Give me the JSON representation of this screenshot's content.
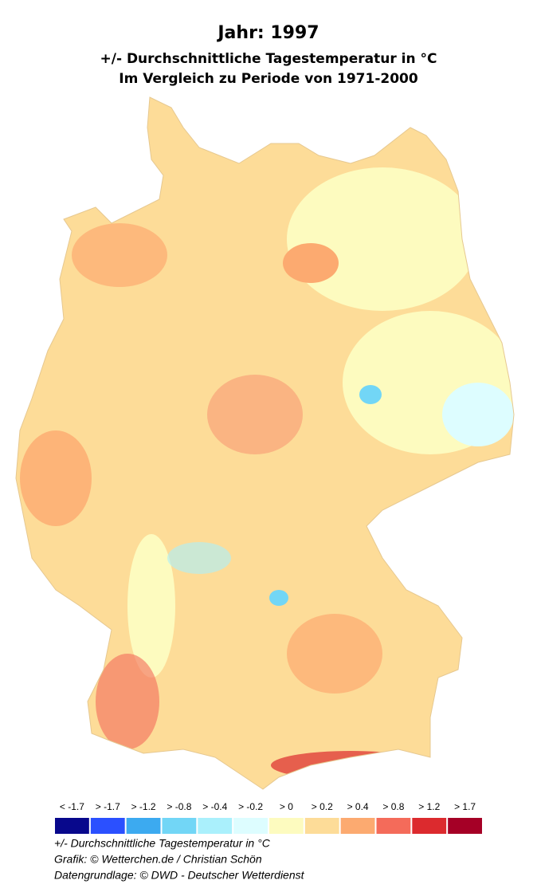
{
  "title": "Jahr: 1997",
  "subtitle": [
    "+/- Durchschnittliche Tagestemperatur in °C",
    "Im Vergleich zu Periode von 1971-2000"
  ],
  "legend": {
    "items": [
      {
        "label": "< -1.7",
        "color": "#08088c"
      },
      {
        "label": "> -1.7",
        "color": "#2b50ff"
      },
      {
        "label": "> -1.2",
        "color": "#3caaf0"
      },
      {
        "label": "> -0.8",
        "color": "#72d6f6"
      },
      {
        "label": "> -0.4",
        "color": "#aaf0fc"
      },
      {
        "label": "> -0.2",
        "color": "#ddfdff"
      },
      {
        "label": "> 0",
        "color": "#fdfbbf"
      },
      {
        "label": "> 0.2",
        "color": "#fddc98"
      },
      {
        "label": "> 0.4",
        "color": "#fcaa70"
      },
      {
        "label": "> 0.8",
        "color": "#f46b5a"
      },
      {
        "label": "> 1.2",
        "color": "#dc2a2e"
      },
      {
        "label": "> 1.7",
        "color": "#a50026"
      }
    ]
  },
  "footer": [
    "+/- Durchschnittliche Tagestemperatur in °C",
    "Grafik: © Wetterchen.de / Christian Schön",
    "Datengrundlage: © DWD - Deutscher Wetterdienst"
  ]
}
